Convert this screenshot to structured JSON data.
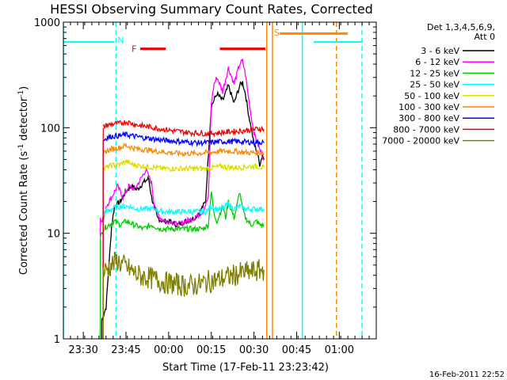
{
  "chart_data": {
    "type": "line",
    "title": "HESSI Observing Summary Count Rates, Corrected",
    "xlabel": "Start Time (17-Feb-11 23:23:42)",
    "ylabel": "Corrected Count Rate (s⁻¹ detector⁻¹)",
    "ylabel_parts": [
      "Corrected Count Rate (s",
      "-1",
      " detector",
      "-1",
      ")"
    ],
    "footer_date": "16-Feb-2011 22:52",
    "yscale": "log",
    "ylim": [
      1,
      1000
    ],
    "xlim_min": [
      0,
      110
    ],
    "x_ticks": [
      {
        "min": 7,
        "label": "23:30"
      },
      {
        "min": 22,
        "label": "23:45"
      },
      {
        "min": 37,
        "label": "00:00"
      },
      {
        "min": 52,
        "label": "00:15"
      },
      {
        "min": 67,
        "label": "00:30"
      },
      {
        "min": 82,
        "label": "00:45"
      },
      {
        "min": 97,
        "label": "01:00"
      }
    ],
    "y_ticks": [
      {
        "value": 1,
        "label": "1"
      },
      {
        "value": 10,
        "label": "10"
      },
      {
        "value": 100,
        "label": "100"
      },
      {
        "value": 1000,
        "label": "1000"
      }
    ],
    "legend": {
      "header": [
        "Det 1,3,4,5,6,9,",
        "Att 0"
      ],
      "placement": "right"
    },
    "series": [
      {
        "name": "3 - 6 keV",
        "color": "#000000",
        "points": [
          [
            13.5,
            1.5
          ],
          [
            15,
            2
          ],
          [
            16,
            5
          ],
          [
            17,
            12
          ],
          [
            18,
            18
          ],
          [
            20,
            20
          ],
          [
            22,
            25
          ],
          [
            24,
            28
          ],
          [
            26,
            26
          ],
          [
            28,
            30
          ],
          [
            30,
            33
          ],
          [
            31,
            22
          ],
          [
            33,
            14
          ],
          [
            35,
            13
          ],
          [
            37,
            13
          ],
          [
            40,
            12
          ],
          [
            43,
            13
          ],
          [
            46,
            14
          ],
          [
            48,
            16
          ],
          [
            50,
            20
          ],
          [
            52,
            160
          ],
          [
            54,
            210
          ],
          [
            56,
            180
          ],
          [
            58,
            250
          ],
          [
            60,
            170
          ],
          [
            62,
            250
          ],
          [
            63,
            270
          ],
          [
            64,
            210
          ],
          [
            65,
            140
          ],
          [
            66,
            100
          ],
          [
            67,
            70
          ],
          [
            68,
            60
          ],
          [
            69,
            45
          ],
          [
            70,
            55
          ],
          [
            70.5,
            50
          ]
        ]
      },
      {
        "name": "6 - 12 keV",
        "color": "#ff00ff",
        "points": [
          [
            13,
            14
          ],
          [
            14,
            13
          ],
          [
            15,
            18
          ],
          [
            17,
            22
          ],
          [
            19,
            28
          ],
          [
            21,
            22
          ],
          [
            23,
            28
          ],
          [
            25,
            26
          ],
          [
            27,
            32
          ],
          [
            29,
            40
          ],
          [
            31,
            30
          ],
          [
            32,
            18
          ],
          [
            34,
            14
          ],
          [
            36,
            13
          ],
          [
            38,
            13
          ],
          [
            40,
            12
          ],
          [
            43,
            13
          ],
          [
            46,
            14
          ],
          [
            49,
            16
          ],
          [
            51,
            22
          ],
          [
            52,
            170
          ],
          [
            53,
            260
          ],
          [
            54,
            300
          ],
          [
            56,
            220
          ],
          [
            58,
            370
          ],
          [
            60,
            260
          ],
          [
            62,
            400
          ],
          [
            63,
            430
          ],
          [
            64,
            320
          ],
          [
            65,
            200
          ],
          [
            66,
            130
          ],
          [
            67,
            90
          ],
          [
            68,
            75
          ],
          [
            69,
            62
          ],
          [
            70,
            55
          ],
          [
            70.5,
            50
          ]
        ]
      },
      {
        "name": "12 - 25 keV",
        "color": "#00cc00",
        "points": [
          [
            13,
            9
          ],
          [
            14,
            11
          ],
          [
            16,
            12
          ],
          [
            18,
            13
          ],
          [
            20,
            12
          ],
          [
            22,
            13
          ],
          [
            25,
            12
          ],
          [
            28,
            11
          ],
          [
            31,
            12
          ],
          [
            34,
            11
          ],
          [
            37,
            11
          ],
          [
            40,
            11
          ],
          [
            43,
            11
          ],
          [
            46,
            11
          ],
          [
            49,
            11
          ],
          [
            51,
            12
          ],
          [
            52,
            25
          ],
          [
            53,
            15
          ],
          [
            54,
            13
          ],
          [
            56,
            18
          ],
          [
            57,
            14
          ],
          [
            58,
            20
          ],
          [
            60,
            14
          ],
          [
            61,
            18
          ],
          [
            62,
            25
          ],
          [
            63,
            17
          ],
          [
            64,
            14
          ],
          [
            66,
            12
          ],
          [
            68,
            13
          ],
          [
            69,
            12
          ],
          [
            70,
            12
          ],
          [
            70.5,
            12
          ]
        ]
      },
      {
        "name": "25 - 50 keV",
        "color": "#00ffff",
        "points": [
          [
            14,
            15
          ],
          [
            15,
            16
          ],
          [
            17,
            17
          ],
          [
            20,
            18
          ],
          [
            23,
            18
          ],
          [
            26,
            17
          ],
          [
            29,
            17
          ],
          [
            32,
            17
          ],
          [
            35,
            16
          ],
          [
            38,
            16
          ],
          [
            41,
            16
          ],
          [
            44,
            16
          ],
          [
            47,
            16
          ],
          [
            50,
            16
          ],
          [
            52,
            18
          ],
          [
            54,
            17
          ],
          [
            56,
            17
          ],
          [
            58,
            19
          ],
          [
            60,
            17
          ],
          [
            62,
            18
          ],
          [
            64,
            17
          ],
          [
            66,
            17
          ],
          [
            68,
            17
          ],
          [
            70,
            17
          ],
          [
            70.5,
            17
          ]
        ]
      },
      {
        "name": "50 - 100 keV",
        "color": "#dddd00",
        "points": [
          [
            14,
            40
          ],
          [
            15,
            42
          ],
          [
            17,
            44
          ],
          [
            20,
            45
          ],
          [
            22,
            48
          ],
          [
            24,
            45
          ],
          [
            26,
            44
          ],
          [
            29,
            43
          ],
          [
            32,
            42
          ],
          [
            35,
            41
          ],
          [
            38,
            41
          ],
          [
            41,
            41
          ],
          [
            44,
            41
          ],
          [
            47,
            41
          ],
          [
            50,
            41
          ],
          [
            53,
            42
          ],
          [
            56,
            43
          ],
          [
            59,
            42
          ],
          [
            62,
            42
          ],
          [
            65,
            43
          ],
          [
            68,
            43
          ],
          [
            70,
            42
          ],
          [
            70.5,
            42
          ]
        ]
      },
      {
        "name": "100 - 300 keV",
        "color": "#ff8800",
        "points": [
          [
            14,
            56
          ],
          [
            15,
            60
          ],
          [
            17,
            63
          ],
          [
            20,
            65
          ],
          [
            22,
            68
          ],
          [
            24,
            65
          ],
          [
            26,
            63
          ],
          [
            29,
            62
          ],
          [
            32,
            60
          ],
          [
            35,
            59
          ],
          [
            38,
            58
          ],
          [
            41,
            57
          ],
          [
            44,
            57
          ],
          [
            47,
            57
          ],
          [
            50,
            58
          ],
          [
            53,
            59
          ],
          [
            56,
            60
          ],
          [
            59,
            60
          ],
          [
            62,
            59
          ],
          [
            65,
            58
          ],
          [
            68,
            58
          ],
          [
            70,
            58
          ],
          [
            70.5,
            57
          ]
        ]
      },
      {
        "name": "300 - 800 keV",
        "color": "#0000ff",
        "points": [
          [
            14,
            75
          ],
          [
            15,
            80
          ],
          [
            17,
            83
          ],
          [
            20,
            84
          ],
          [
            22,
            86
          ],
          [
            24,
            84
          ],
          [
            26,
            82
          ],
          [
            29,
            80
          ],
          [
            32,
            78
          ],
          [
            35,
            76
          ],
          [
            38,
            75
          ],
          [
            41,
            74
          ],
          [
            44,
            73
          ],
          [
            47,
            72
          ],
          [
            50,
            72
          ],
          [
            53,
            73
          ],
          [
            56,
            74
          ],
          [
            59,
            74
          ],
          [
            62,
            74
          ],
          [
            65,
            73
          ],
          [
            68,
            73
          ],
          [
            70,
            73
          ],
          [
            70.5,
            72
          ]
        ]
      },
      {
        "name": "800 - 7000 keV",
        "color": "#ee0000",
        "points": [
          [
            14,
            100
          ],
          [
            15,
            105
          ],
          [
            17,
            108
          ],
          [
            20,
            110
          ],
          [
            22,
            114
          ],
          [
            24,
            110
          ],
          [
            26,
            106
          ],
          [
            29,
            103
          ],
          [
            32,
            100
          ],
          [
            35,
            97
          ],
          [
            38,
            94
          ],
          [
            41,
            92
          ],
          [
            44,
            90
          ],
          [
            47,
            89
          ],
          [
            50,
            88
          ],
          [
            53,
            89
          ],
          [
            56,
            90
          ],
          [
            59,
            92
          ],
          [
            62,
            93
          ],
          [
            65,
            95
          ],
          [
            68,
            97
          ],
          [
            70,
            98
          ],
          [
            70.5,
            97
          ]
        ]
      },
      {
        "name": "7000 - 20000 keV",
        "color": "#808000",
        "points": [
          [
            14,
            4.2
          ],
          [
            15,
            4.5
          ],
          [
            17,
            5
          ],
          [
            19,
            5.5
          ],
          [
            20,
            5.2
          ],
          [
            22,
            4.8
          ],
          [
            24,
            4.4
          ],
          [
            26,
            4.0
          ],
          [
            28,
            3.9
          ],
          [
            30,
            3.8
          ],
          [
            33,
            3.6
          ],
          [
            36,
            3.4
          ],
          [
            39,
            3.3
          ],
          [
            42,
            3.2
          ],
          [
            45,
            3.2
          ],
          [
            48,
            3.3
          ],
          [
            51,
            3.5
          ],
          [
            54,
            3.6
          ],
          [
            57,
            3.8
          ],
          [
            60,
            4.0
          ],
          [
            63,
            4.2
          ],
          [
            66,
            4.3
          ],
          [
            68,
            4.4
          ],
          [
            70,
            4.5
          ],
          [
            70.5,
            4.5
          ]
        ]
      }
    ],
    "bars": [
      {
        "label": "N",
        "label_color": "#00ffff",
        "segments": [
          {
            "x0": 0,
            "x1": 18,
            "y": 650,
            "color": "#00ffff",
            "width": 2
          },
          {
            "x0": 88,
            "x1": 105,
            "y": 650,
            "color": "#00ffff",
            "width": 2
          }
        ],
        "label_x": 19,
        "label_y": 680
      },
      {
        "label": "F",
        "label_color": "#ee0000",
        "segments": [
          {
            "x0": 27,
            "x1": 36,
            "y": 560,
            "color": "#ee0000",
            "width": 3
          },
          {
            "x0": 55,
            "x1": 71,
            "y": 560,
            "color": "#ee0000",
            "width": 3
          }
        ],
        "label_x": 24,
        "label_y": 560
      },
      {
        "label": "S",
        "label_color": "#ff8800",
        "segments": [
          {
            "x0": 76,
            "x1": 100,
            "y": 780,
            "color": "#ff8800",
            "width": 3
          }
        ],
        "label_x": 74,
        "label_y": 800
      }
    ],
    "vlines": [
      {
        "x": 0,
        "color": "#00ffff",
        "dashed": false
      },
      {
        "x": 18.5,
        "color": "#00ffff",
        "dashed": true
      },
      {
        "x": 71.5,
        "color": "#ff8800",
        "dashed": false
      },
      {
        "x": 73.5,
        "color": "#ff8800",
        "dashed": false
      },
      {
        "x": 84,
        "color": "#00ffff",
        "dashed": false
      },
      {
        "x": 96,
        "color": "#ff8800",
        "dashed": true
      },
      {
        "x": 105,
        "color": "#00ffff",
        "dashed": true
      }
    ]
  }
}
